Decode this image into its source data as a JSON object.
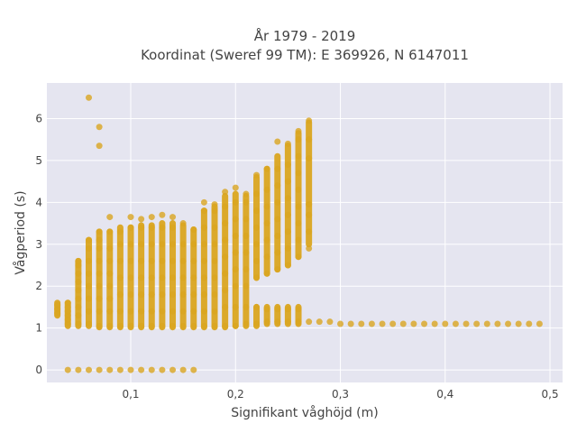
{
  "chart_data": {
    "type": "scatter",
    "title_line1": "År 1979 - 2019",
    "title_line2": "Koordinat (Sweref 99 TM): E 369926, N 6147011",
    "xlabel": "Signifikant våghöjd (m)",
    "ylabel": "Vågperiod (s)",
    "xlim": [
      0.02,
      0.512
    ],
    "ylim": [
      -0.3,
      6.85
    ],
    "x_ticks": [
      0.1,
      0.2,
      0.3,
      0.4,
      0.5
    ],
    "x_tick_labels": [
      "0,1",
      "0,2",
      "0,3",
      "0,4",
      "0,5"
    ],
    "y_ticks": [
      0,
      1,
      2,
      3,
      4,
      5,
      6
    ],
    "y_tick_labels": [
      "0",
      "1",
      "2",
      "3",
      "4",
      "5",
      "6"
    ],
    "grid": true,
    "colors": {
      "marker": "#daa520",
      "plot_bg": "#e5e5f0",
      "grid": "#ffffff"
    },
    "series": [
      {
        "points": [
          [
            0.03,
            1.35
          ],
          [
            0.03,
            1.45
          ],
          [
            0.03,
            1.55
          ],
          [
            0.04,
            1.1
          ],
          [
            0.04,
            1.2
          ],
          [
            0.04,
            1.3
          ],
          [
            0.04,
            1.4
          ],
          [
            0.04,
            1.5
          ],
          [
            0.04,
            1.6
          ],
          [
            0.05,
            1.1
          ],
          [
            0.05,
            1.3
          ],
          [
            0.05,
            1.5
          ],
          [
            0.05,
            1.7
          ],
          [
            0.05,
            1.9
          ],
          [
            0.05,
            2.1
          ],
          [
            0.05,
            2.3
          ],
          [
            0.05,
            2.5
          ],
          [
            0.05,
            2.6
          ],
          [
            0.06,
            1.1
          ],
          [
            0.06,
            1.4
          ],
          [
            0.06,
            1.7
          ],
          [
            0.06,
            2.0
          ],
          [
            0.06,
            2.3
          ],
          [
            0.06,
            2.6
          ],
          [
            0.06,
            2.9
          ],
          [
            0.06,
            3.1
          ],
          [
            0.06,
            6.5
          ],
          [
            0.07,
            1.05
          ],
          [
            0.07,
            1.4
          ],
          [
            0.07,
            1.7
          ],
          [
            0.07,
            2.0
          ],
          [
            0.07,
            2.3
          ],
          [
            0.07,
            2.6
          ],
          [
            0.07,
            2.9
          ],
          [
            0.07,
            3.1
          ],
          [
            0.07,
            3.3
          ],
          [
            0.07,
            5.35
          ],
          [
            0.07,
            5.8
          ],
          [
            0.08,
            1.05
          ],
          [
            0.08,
            1.4
          ],
          [
            0.08,
            1.7
          ],
          [
            0.08,
            2.0
          ],
          [
            0.08,
            2.3
          ],
          [
            0.08,
            2.6
          ],
          [
            0.08,
            2.9
          ],
          [
            0.08,
            3.3
          ],
          [
            0.08,
            3.65
          ],
          [
            0.09,
            1.05
          ],
          [
            0.09,
            1.4
          ],
          [
            0.09,
            1.8
          ],
          [
            0.09,
            2.2
          ],
          [
            0.09,
            2.6
          ],
          [
            0.09,
            3.0
          ],
          [
            0.09,
            3.3
          ],
          [
            0.1,
            1.05
          ],
          [
            0.1,
            1.4
          ],
          [
            0.1,
            1.8
          ],
          [
            0.1,
            2.2
          ],
          [
            0.1,
            2.6
          ],
          [
            0.1,
            3.0
          ],
          [
            0.1,
            3.4
          ],
          [
            0.1,
            3.65
          ],
          [
            0.11,
            1.05
          ],
          [
            0.11,
            1.4
          ],
          [
            0.11,
            1.8
          ],
          [
            0.11,
            2.2
          ],
          [
            0.11,
            2.6
          ],
          [
            0.11,
            3.0
          ],
          [
            0.11,
            3.4
          ],
          [
            0.11,
            3.6
          ],
          [
            0.12,
            1.05
          ],
          [
            0.12,
            1.4
          ],
          [
            0.12,
            1.8
          ],
          [
            0.12,
            2.2
          ],
          [
            0.12,
            2.6
          ],
          [
            0.12,
            3.0
          ],
          [
            0.12,
            3.4
          ],
          [
            0.12,
            3.65
          ],
          [
            0.13,
            1.05
          ],
          [
            0.13,
            1.4
          ],
          [
            0.13,
            1.8
          ],
          [
            0.13,
            2.2
          ],
          [
            0.13,
            2.6
          ],
          [
            0.13,
            3.0
          ],
          [
            0.13,
            3.4
          ],
          [
            0.13,
            3.7
          ],
          [
            0.14,
            1.05
          ],
          [
            0.14,
            1.4
          ],
          [
            0.14,
            1.8
          ],
          [
            0.14,
            2.2
          ],
          [
            0.14,
            2.6
          ],
          [
            0.14,
            3.0
          ],
          [
            0.14,
            3.4
          ],
          [
            0.14,
            3.65
          ],
          [
            0.15,
            1.05
          ],
          [
            0.15,
            1.4
          ],
          [
            0.15,
            1.8
          ],
          [
            0.15,
            2.2
          ],
          [
            0.15,
            2.6
          ],
          [
            0.15,
            3.0
          ],
          [
            0.15,
            3.5
          ],
          [
            0.16,
            1.05
          ],
          [
            0.16,
            1.4
          ],
          [
            0.16,
            1.8
          ],
          [
            0.16,
            2.2
          ],
          [
            0.16,
            2.6
          ],
          [
            0.16,
            3.0
          ],
          [
            0.16,
            3.35
          ],
          [
            0.17,
            1.05
          ],
          [
            0.17,
            1.4
          ],
          [
            0.17,
            1.8
          ],
          [
            0.17,
            2.2
          ],
          [
            0.17,
            2.6
          ],
          [
            0.17,
            3.0
          ],
          [
            0.17,
            3.4
          ],
          [
            0.17,
            3.8
          ],
          [
            0.17,
            4.0
          ],
          [
            0.18,
            1.05
          ],
          [
            0.18,
            1.4
          ],
          [
            0.18,
            1.8
          ],
          [
            0.18,
            2.2
          ],
          [
            0.18,
            2.6
          ],
          [
            0.18,
            3.0
          ],
          [
            0.18,
            3.4
          ],
          [
            0.18,
            3.8
          ],
          [
            0.18,
            3.95
          ],
          [
            0.19,
            1.05
          ],
          [
            0.19,
            1.5
          ],
          [
            0.19,
            1.9
          ],
          [
            0.19,
            2.3
          ],
          [
            0.19,
            2.7
          ],
          [
            0.19,
            3.1
          ],
          [
            0.19,
            3.5
          ],
          [
            0.19,
            3.9
          ],
          [
            0.19,
            4.25
          ],
          [
            0.2,
            1.05
          ],
          [
            0.2,
            1.5
          ],
          [
            0.2,
            2.0
          ],
          [
            0.2,
            2.4
          ],
          [
            0.2,
            2.8
          ],
          [
            0.2,
            3.2
          ],
          [
            0.2,
            3.6
          ],
          [
            0.2,
            4.0
          ],
          [
            0.2,
            4.35
          ],
          [
            0.21,
            1.1
          ],
          [
            0.21,
            1.5
          ],
          [
            0.21,
            2.0
          ],
          [
            0.21,
            2.4
          ],
          [
            0.21,
            2.8
          ],
          [
            0.21,
            3.2
          ],
          [
            0.21,
            3.6
          ],
          [
            0.21,
            4.0
          ],
          [
            0.21,
            4.2
          ],
          [
            0.22,
            1.1
          ],
          [
            0.22,
            1.5
          ],
          [
            0.22,
            2.2
          ],
          [
            0.22,
            2.6
          ],
          [
            0.22,
            3.0
          ],
          [
            0.22,
            3.4
          ],
          [
            0.22,
            3.8
          ],
          [
            0.22,
            4.2
          ],
          [
            0.22,
            4.65
          ],
          [
            0.23,
            1.15
          ],
          [
            0.23,
            1.45
          ],
          [
            0.23,
            2.3
          ],
          [
            0.23,
            2.7
          ],
          [
            0.23,
            3.1
          ],
          [
            0.23,
            3.5
          ],
          [
            0.23,
            3.9
          ],
          [
            0.23,
            4.3
          ],
          [
            0.23,
            4.8
          ],
          [
            0.24,
            1.15
          ],
          [
            0.24,
            1.45
          ],
          [
            0.24,
            2.4
          ],
          [
            0.24,
            2.8
          ],
          [
            0.24,
            3.2
          ],
          [
            0.24,
            3.6
          ],
          [
            0.24,
            4.0
          ],
          [
            0.24,
            4.4
          ],
          [
            0.24,
            4.8
          ],
          [
            0.24,
            5.45
          ],
          [
            0.25,
            1.15
          ],
          [
            0.25,
            1.45
          ],
          [
            0.25,
            2.5
          ],
          [
            0.25,
            2.9
          ],
          [
            0.25,
            3.3
          ],
          [
            0.25,
            3.7
          ],
          [
            0.25,
            4.1
          ],
          [
            0.25,
            4.5
          ],
          [
            0.25,
            4.9
          ],
          [
            0.25,
            5.4
          ],
          [
            0.26,
            1.15
          ],
          [
            0.26,
            1.45
          ],
          [
            0.26,
            2.7
          ],
          [
            0.26,
            3.1
          ],
          [
            0.26,
            3.5
          ],
          [
            0.26,
            3.9
          ],
          [
            0.26,
            4.3
          ],
          [
            0.26,
            4.7
          ],
          [
            0.26,
            5.1
          ],
          [
            0.26,
            5.5
          ],
          [
            0.26,
            5.7
          ],
          [
            0.27,
            1.15
          ],
          [
            0.27,
            2.9
          ],
          [
            0.27,
            3.3
          ],
          [
            0.27,
            3.7
          ],
          [
            0.27,
            3.95
          ],
          [
            0.27,
            5.05
          ],
          [
            0.27,
            5.5
          ],
          [
            0.27,
            5.95
          ],
          [
            0.28,
            1.15
          ],
          [
            0.29,
            1.15
          ],
          [
            0.3,
            1.1
          ],
          [
            0.31,
            1.1
          ],
          [
            0.32,
            1.1
          ],
          [
            0.33,
            1.1
          ],
          [
            0.34,
            1.1
          ],
          [
            0.35,
            1.1
          ],
          [
            0.36,
            1.1
          ],
          [
            0.37,
            1.1
          ],
          [
            0.38,
            1.1
          ],
          [
            0.39,
            1.1
          ],
          [
            0.4,
            1.1
          ],
          [
            0.41,
            1.1
          ],
          [
            0.42,
            1.1
          ],
          [
            0.43,
            1.1
          ],
          [
            0.44,
            1.1
          ],
          [
            0.45,
            1.1
          ],
          [
            0.46,
            1.1
          ],
          [
            0.47,
            1.1
          ],
          [
            0.48,
            1.1
          ],
          [
            0.49,
            1.1
          ],
          [
            0.04,
            0
          ],
          [
            0.05,
            0
          ],
          [
            0.06,
            0
          ],
          [
            0.07,
            0
          ],
          [
            0.08,
            0
          ],
          [
            0.09,
            0
          ],
          [
            0.1,
            0
          ],
          [
            0.11,
            0
          ],
          [
            0.12,
            0
          ],
          [
            0.13,
            0
          ],
          [
            0.14,
            0
          ],
          [
            0.15,
            0
          ],
          [
            0.16,
            0
          ]
        ],
        "columns": [
          [
            0.03,
            1.3,
            1.6
          ],
          [
            0.04,
            1.05,
            1.6
          ],
          [
            0.05,
            1.05,
            2.6
          ],
          [
            0.06,
            1.05,
            3.1
          ],
          [
            0.07,
            1.02,
            3.3
          ],
          [
            0.08,
            1.02,
            3.3
          ],
          [
            0.09,
            1.02,
            3.4
          ],
          [
            0.1,
            1.02,
            3.4
          ],
          [
            0.11,
            1.02,
            3.45
          ],
          [
            0.12,
            1.02,
            3.45
          ],
          [
            0.13,
            1.02,
            3.5
          ],
          [
            0.14,
            1.02,
            3.5
          ],
          [
            0.15,
            1.02,
            3.45
          ],
          [
            0.16,
            1.02,
            3.35
          ],
          [
            0.17,
            1.02,
            3.8
          ],
          [
            0.18,
            1.02,
            3.9
          ],
          [
            0.19,
            1.02,
            4.15
          ],
          [
            0.2,
            1.05,
            4.2
          ],
          [
            0.21,
            1.05,
            4.15
          ],
          [
            0.22,
            2.2,
            4.6
          ],
          [
            0.23,
            2.3,
            4.8
          ],
          [
            0.24,
            2.4,
            5.1
          ],
          [
            0.25,
            2.5,
            5.35
          ],
          [
            0.26,
            2.7,
            5.65
          ],
          [
            0.27,
            3.0,
            5.9
          ],
          [
            0.22,
            1.05,
            1.5
          ],
          [
            0.23,
            1.1,
            1.5
          ],
          [
            0.24,
            1.1,
            1.5
          ],
          [
            0.25,
            1.1,
            1.5
          ],
          [
            0.26,
            1.1,
            1.5
          ]
        ]
      }
    ]
  }
}
